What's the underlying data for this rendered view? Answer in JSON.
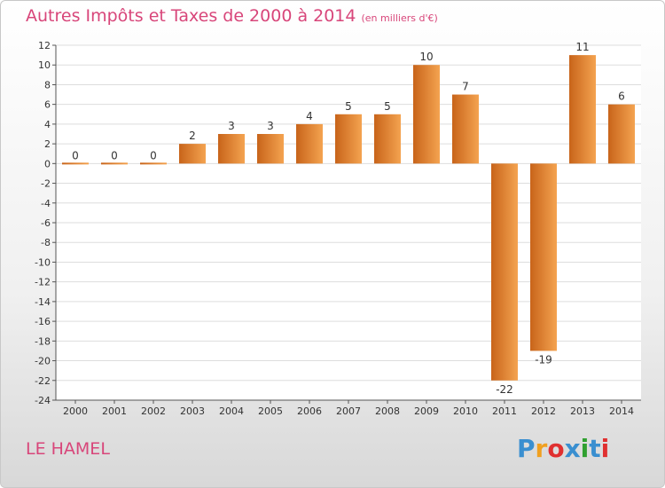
{
  "header": {
    "title": "Autres Impôts et Taxes de 2000 à 2014",
    "subtitle": "(en milliers d'€)"
  },
  "footer": {
    "place": "LE HAMEL",
    "logo_letters": [
      "P",
      "r",
      "o",
      "x",
      "i",
      "t",
      "i"
    ],
    "logo_colors": [
      "#3a8fd0",
      "#f0a020",
      "#e03030",
      "#3a8fd0",
      "#30a030",
      "#3a8fd0",
      "#e03030"
    ]
  },
  "colors": {
    "bar_light": "#f4a350",
    "bar_dark": "#c8641a",
    "axis": "#555555",
    "grid": "#dddddd",
    "text": "#333333"
  },
  "chart_data": {
    "type": "bar",
    "categories": [
      "2000",
      "2001",
      "2002",
      "2003",
      "2004",
      "2005",
      "2006",
      "2007",
      "2008",
      "2009",
      "2010",
      "2011",
      "2012",
      "2013",
      "2014"
    ],
    "values": [
      0,
      0,
      0,
      2,
      3,
      3,
      4,
      5,
      5,
      10,
      7,
      -22,
      -19,
      11,
      6
    ],
    "ylim": [
      -24,
      12
    ],
    "yticks": [
      12,
      10,
      8,
      6,
      4,
      2,
      0,
      -2,
      -4,
      -6,
      -8,
      -10,
      -12,
      -14,
      -16,
      -18,
      -20,
      -22,
      -24
    ],
    "grid": true,
    "legend": "none"
  }
}
